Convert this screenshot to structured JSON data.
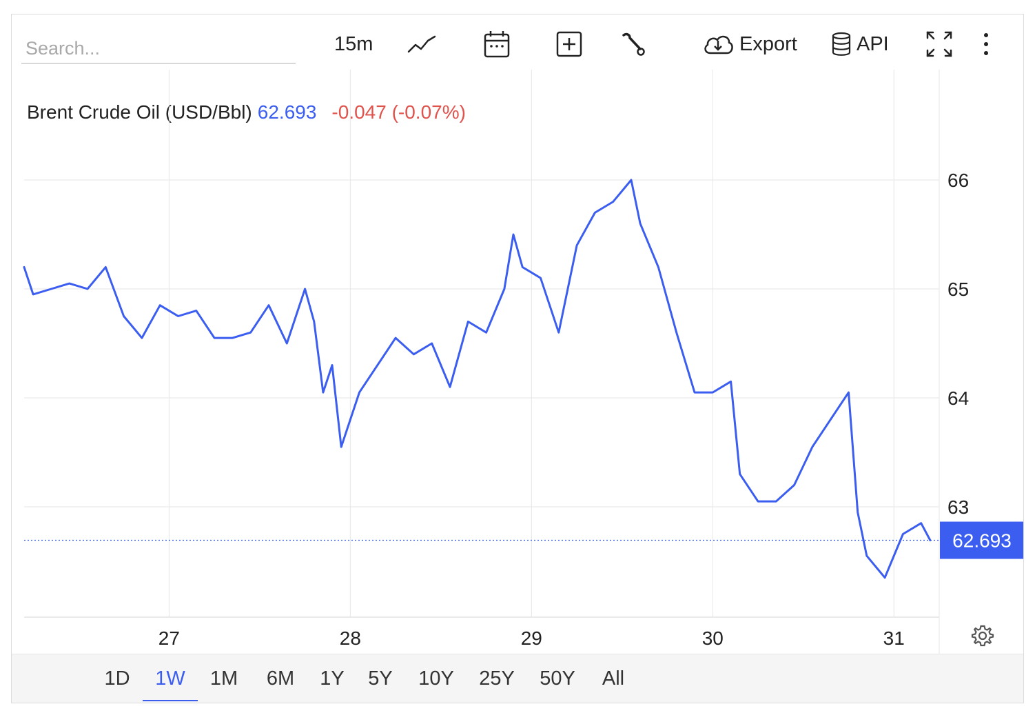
{
  "toolbar": {
    "search_placeholder": "Search...",
    "interval_label": "15m",
    "export_label": "Export",
    "api_label": "API",
    "icons": [
      "line-chart-icon",
      "calendar-icon",
      "plus-box-icon",
      "wrench-icon",
      "cloud-download-icon",
      "database-icon",
      "fullscreen-icon",
      "more-vertical-icon",
      "gear-icon"
    ]
  },
  "legend": {
    "name": "Brent Crude Oil (USD/Bbl)",
    "price": "62.693",
    "change": "-0.047 (-0.07%)"
  },
  "colors": {
    "line": "#3b5ef0",
    "change_negative": "#e0524c",
    "grid": "#e6e6e6",
    "price_tag_bg": "#3b5ef0"
  },
  "ranges": {
    "items": [
      "1D",
      "1W",
      "1M",
      "6M",
      "1Y",
      "5Y",
      "10Y",
      "25Y",
      "50Y",
      "All"
    ],
    "active": "1W"
  },
  "chart_data": {
    "type": "line",
    "series": [
      {
        "x": [
          26.2,
          26.25,
          26.35,
          26.45,
          26.55,
          26.65,
          26.75,
          26.85,
          26.95,
          27.05,
          27.15,
          27.25,
          27.35,
          27.45,
          27.55,
          27.65,
          27.75,
          27.8,
          27.85,
          27.9,
          27.95,
          28.05,
          28.15,
          28.25,
          28.35,
          28.45,
          28.55,
          28.65,
          28.75,
          28.85,
          28.9,
          28.95,
          29.05,
          29.15,
          29.25,
          29.35,
          29.45,
          29.55,
          29.6,
          29.7,
          29.8,
          29.9,
          30.0,
          30.1,
          30.15,
          30.25,
          30.35,
          30.45,
          30.55,
          30.65,
          30.75,
          30.8,
          30.85,
          30.95,
          31.05,
          31.15,
          31.2
        ],
        "y": [
          65.2,
          64.95,
          65.0,
          65.05,
          65.0,
          65.2,
          64.75,
          64.55,
          64.85,
          64.75,
          64.8,
          64.55,
          64.55,
          64.6,
          64.85,
          64.5,
          65.0,
          64.7,
          64.05,
          64.3,
          63.55,
          64.05,
          64.3,
          64.55,
          64.4,
          64.5,
          64.1,
          64.7,
          64.6,
          65.0,
          65.5,
          65.2,
          65.1,
          64.6,
          65.4,
          65.7,
          65.8,
          66.0,
          65.6,
          65.2,
          64.6,
          64.05,
          64.05,
          64.15,
          63.3,
          63.05,
          63.05,
          63.2,
          63.55,
          63.8,
          64.05,
          62.95,
          62.55,
          62.35,
          62.75,
          62.85,
          62.693
        ]
      }
    ],
    "x_ticks": [
      "27",
      "28",
      "29",
      "30",
      "31"
    ],
    "x_tick_values": [
      27,
      28,
      29,
      30,
      31
    ],
    "x_range": [
      26.2,
      31.25
    ],
    "y_ticks": [
      63,
      64,
      65,
      66
    ],
    "y_range": [
      62.0,
      66.75
    ],
    "last_value": 62.693,
    "last_value_label": "62.693",
    "grid": true
  }
}
